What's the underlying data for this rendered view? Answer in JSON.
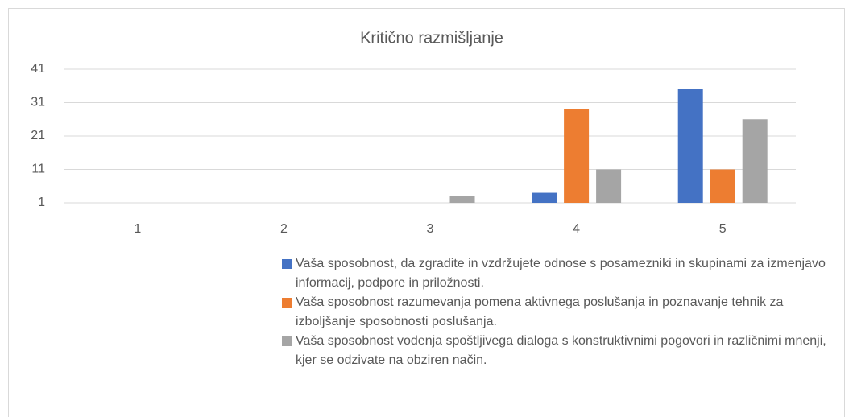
{
  "chart_data": {
    "type": "bar",
    "title": "Kritično razmišljanje",
    "categories": [
      "1",
      "2",
      "3",
      "4",
      "5"
    ],
    "series": [
      {
        "name": "Vaša sposobnost, da zgradite in vzdržujete odnose s posamezniki in skupinami za izmenjavo informacij, podpore in priložnosti.",
        "color": "#4472c4",
        "values": [
          1,
          1,
          1,
          4,
          35
        ]
      },
      {
        "name": "Vaša sposobnost razumevanja pomena aktivnega poslušanja in poznavanje tehnik za izboljšanje sposobnosti poslušanja.",
        "color": "#ed7d31",
        "values": [
          1,
          1,
          1,
          29,
          11
        ]
      },
      {
        "name": "Vaša sposobnost vodenja spoštljivega dialoga s konstruktivnimi pogovori in različnimi mnenji, kjer se odzivate na obziren način.",
        "color": "#a5a5a5",
        "values": [
          1,
          1,
          3,
          11,
          26
        ]
      }
    ],
    "ylim": [
      1,
      41
    ],
    "yticks": [
      1,
      11,
      21,
      31,
      41
    ],
    "grid": true,
    "legend": "bottom"
  }
}
